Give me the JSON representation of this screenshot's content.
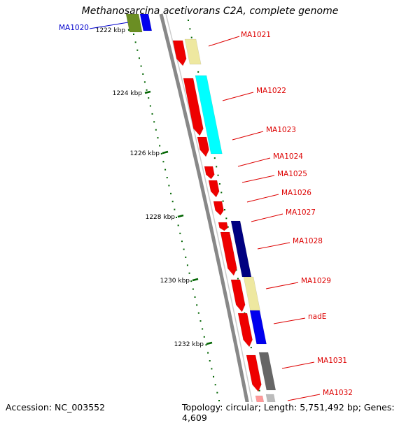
{
  "title": "Methanosarcina acetivorans C2A, complete genome",
  "footer": {
    "accession": "Accession: NC_003552",
    "topology": "Topology: circular; Length: 5,751,492 bp; Genes: 4,609"
  },
  "ticks": [
    {
      "label": "1222 kbp"
    },
    {
      "label": "1224 kbp"
    },
    {
      "label": "1226 kbp"
    },
    {
      "label": "1228 kbp"
    },
    {
      "label": "1230 kbp"
    },
    {
      "label": "1232 kbp"
    }
  ],
  "genes": [
    {
      "name": "MA1020",
      "color": "#0000cc"
    },
    {
      "name": "MA1021",
      "color": "#dd0000"
    },
    {
      "name": "MA1022",
      "color": "#dd0000"
    },
    {
      "name": "MA1023",
      "color": "#dd0000"
    },
    {
      "name": "MA1024",
      "color": "#dd0000"
    },
    {
      "name": "MA1025",
      "color": "#dd0000"
    },
    {
      "name": "MA1026",
      "color": "#dd0000"
    },
    {
      "name": "MA1027",
      "color": "#dd0000"
    },
    {
      "name": "MA1028",
      "color": "#dd0000"
    },
    {
      "name": "MA1029",
      "color": "#dd0000"
    },
    {
      "name": "nadE",
      "color": "#dd0000"
    },
    {
      "name": "MA1031",
      "color": "#dd0000"
    },
    {
      "name": "MA1032",
      "color": "#dd0000"
    }
  ],
  "colors": {
    "forward_cds": "#ee0000",
    "cyan_feature": "#00ffff",
    "yellow_feature": "#eee8a0",
    "blue_feature": "#0000ee",
    "navy_feature": "#000080",
    "gray_feature": "#666666",
    "olive_feature": "#6b8e23",
    "backbone": "#888888",
    "tick": "#006400"
  }
}
